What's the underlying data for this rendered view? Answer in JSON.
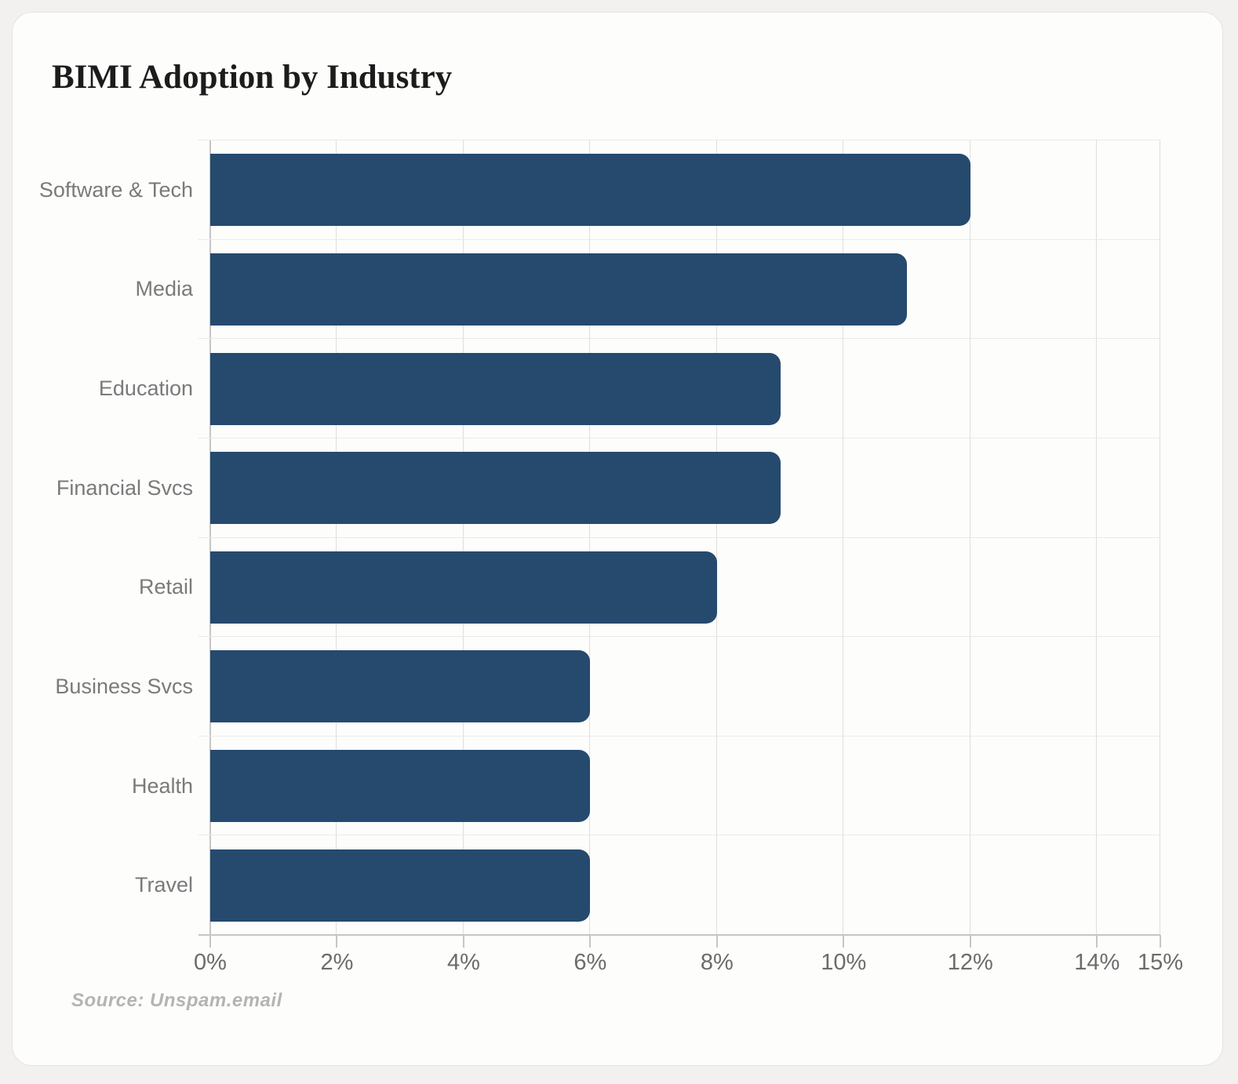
{
  "chart_data": {
    "type": "bar",
    "orientation": "horizontal",
    "title": "BIMI Adoption by Industry",
    "categories": [
      "Software & Tech",
      "Media",
      "Education",
      "Financial Svcs",
      "Retail",
      "Business Svcs",
      "Health",
      "Travel"
    ],
    "values": [
      12,
      11,
      9,
      9,
      8,
      6,
      6,
      6
    ],
    "value_unit": "%",
    "xlabel": "",
    "ylabel": "",
    "xlim": [
      0,
      15
    ],
    "x_tick_values": [
      0,
      2,
      4,
      6,
      8,
      10,
      12,
      14,
      15
    ],
    "x_tick_labels": [
      "0%",
      "2%",
      "4%",
      "6%",
      "8%",
      "10%",
      "12%",
      "14%",
      "15%"
    ],
    "grid": true,
    "legend": false,
    "bar_color": "#254a6e",
    "source_label": "Source: Unspam.email"
  },
  "colors": {
    "page_bg": "#f2f1ef",
    "card_bg": "#fdfdfc",
    "card_border": "#e5e4e0",
    "title_text": "#1c1c1c",
    "bar": "#254a6e",
    "gridline_v": "#dedede",
    "gridline_h": "#eaeaea",
    "axis": "#c6c6c6",
    "category_label": "#7a7a7a",
    "tick_label": "#6c6c6c",
    "source_text": "#b4b4b4"
  }
}
